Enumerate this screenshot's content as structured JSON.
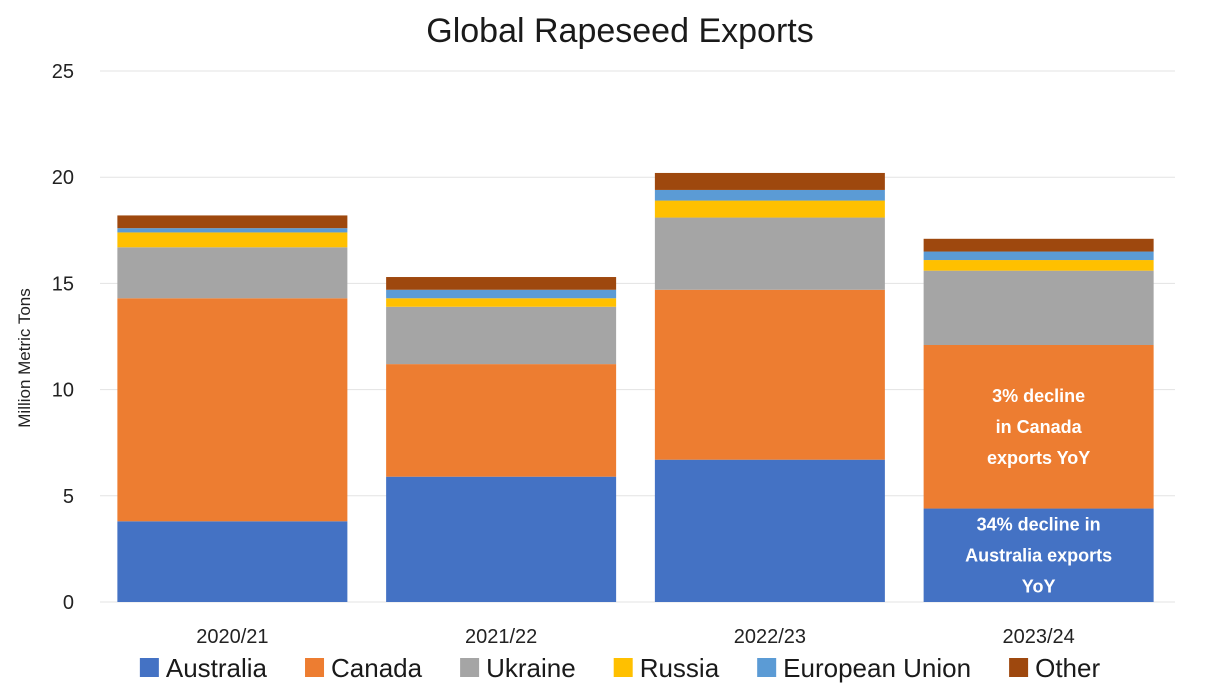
{
  "chart_data": {
    "type": "bar",
    "stacked": true,
    "title": "Global Rapeseed Exports",
    "xlabel": "",
    "ylabel": "Million Metric Tons",
    "ylim": [
      0,
      25
    ],
    "yticks": [
      0,
      5,
      10,
      15,
      20,
      25
    ],
    "grid": true,
    "legend_position": "bottom",
    "categories": [
      "2020/21",
      "2021/22",
      "2022/23",
      "2023/24"
    ],
    "series": [
      {
        "name": "Australia",
        "color": "#4472C4",
        "values": [
          3.8,
          5.9,
          6.7,
          4.4
        ]
      },
      {
        "name": "Canada",
        "color": "#ED7D31",
        "values": [
          10.5,
          5.3,
          8.0,
          7.7
        ]
      },
      {
        "name": "Ukraine",
        "color": "#A5A5A5",
        "values": [
          2.4,
          2.7,
          3.4,
          3.5
        ]
      },
      {
        "name": "Russia",
        "color": "#FFC000",
        "values": [
          0.7,
          0.4,
          0.8,
          0.5
        ]
      },
      {
        "name": "European Union",
        "color": "#5B9BD5",
        "values": [
          0.2,
          0.4,
          0.5,
          0.4
        ]
      },
      {
        "name": "Other",
        "color": "#9E480E",
        "values": [
          0.6,
          0.6,
          0.8,
          0.6
        ]
      }
    ],
    "annotations": [
      {
        "category": "2023/24",
        "series": "Canada",
        "lines": [
          "3% decline",
          "in Canada",
          "exports YoY"
        ]
      },
      {
        "category": "2023/24",
        "series": "Australia",
        "lines": [
          "34% decline in",
          "Australia exports",
          "YoY"
        ]
      }
    ]
  }
}
